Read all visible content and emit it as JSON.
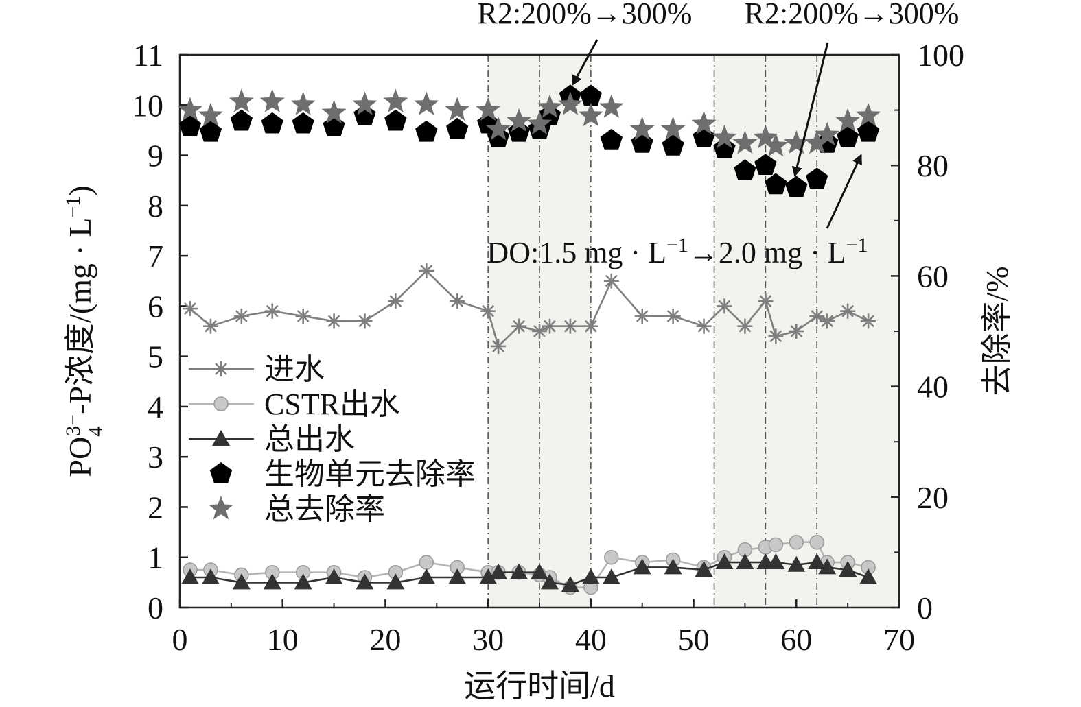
{
  "chart_data": {
    "type": "line",
    "xlabel": "运行时间/d",
    "ylabel_left": "PO4 3−-P浓度/(mg·L−1)",
    "ylabel_left_parts": {
      "pre": "PO",
      "sub": "4",
      "sup": "3−",
      "post": "-P浓度/(mg · L",
      "post_sup": "−1",
      "post_end": ")"
    },
    "ylabel_right": "去除率/%",
    "xlim": [
      0,
      70
    ],
    "ylim_left": [
      0,
      11
    ],
    "ylim_right": [
      0,
      100
    ],
    "xticks": [
      0,
      10,
      20,
      30,
      40,
      50,
      60,
      70
    ],
    "yticks_left": [
      0,
      1,
      2,
      3,
      4,
      5,
      6,
      7,
      8,
      9,
      10,
      11
    ],
    "yticks_right": [
      0,
      20,
      40,
      60,
      80,
      100
    ],
    "shaded_regions": [
      [
        30,
        40
      ],
      [
        52,
        67
      ]
    ],
    "vlines": [
      30,
      35,
      40,
      52,
      57,
      62
    ],
    "series": [
      {
        "name": "进水",
        "axis": "left",
        "marker": "asterisk",
        "color": "#7f7f7f",
        "x": [
          1,
          3,
          6,
          9,
          12,
          15,
          18,
          21,
          24,
          27,
          30,
          31,
          33,
          35,
          36,
          38,
          40,
          42,
          45,
          48,
          51,
          53,
          55,
          57,
          58,
          60,
          62,
          63,
          65,
          67
        ],
        "y": [
          5.95,
          5.6,
          5.8,
          5.9,
          5.8,
          5.7,
          5.7,
          6.1,
          6.7,
          6.1,
          5.9,
          5.2,
          5.6,
          5.5,
          5.6,
          5.6,
          5.6,
          6.5,
          5.8,
          5.8,
          5.6,
          6.0,
          5.6,
          6.1,
          5.4,
          5.5,
          5.8,
          5.7,
          5.9,
          5.7
        ]
      },
      {
        "name": "CSTR出水",
        "axis": "left",
        "marker": "circle",
        "color": "#b5b5b5",
        "x": [
          1,
          3,
          6,
          9,
          12,
          15,
          18,
          21,
          24,
          27,
          30,
          31,
          33,
          35,
          36,
          38,
          40,
          42,
          45,
          48,
          51,
          53,
          55,
          57,
          58,
          60,
          62,
          63,
          65,
          67
        ],
        "y": [
          0.75,
          0.75,
          0.65,
          0.7,
          0.7,
          0.7,
          0.6,
          0.7,
          0.9,
          0.8,
          0.7,
          0.7,
          0.7,
          0.65,
          0.6,
          0.4,
          0.4,
          1.0,
          0.9,
          0.95,
          0.8,
          1.0,
          1.15,
          1.2,
          1.25,
          1.3,
          1.3,
          0.9,
          0.9,
          0.8
        ]
      },
      {
        "name": "总出水",
        "axis": "left",
        "marker": "triangle",
        "color": "#333333",
        "x": [
          1,
          3,
          6,
          9,
          12,
          15,
          18,
          21,
          24,
          27,
          30,
          31,
          33,
          35,
          36,
          38,
          40,
          42,
          45,
          48,
          51,
          53,
          55,
          57,
          58,
          60,
          62,
          63,
          65,
          67
        ],
        "y": [
          0.6,
          0.6,
          0.5,
          0.5,
          0.5,
          0.6,
          0.5,
          0.5,
          0.6,
          0.6,
          0.6,
          0.7,
          0.7,
          0.7,
          0.5,
          0.45,
          0.6,
          0.6,
          0.8,
          0.8,
          0.75,
          0.9,
          0.9,
          0.9,
          0.9,
          0.85,
          0.9,
          0.8,
          0.75,
          0.6
        ]
      },
      {
        "name": "生物单元去除率",
        "axis": "right",
        "marker": "pentagon",
        "color": "#000000",
        "x": [
          1,
          3,
          6,
          9,
          12,
          15,
          18,
          21,
          24,
          27,
          30,
          31,
          33,
          35,
          36,
          38,
          40,
          42,
          45,
          48,
          51,
          53,
          55,
          57,
          58,
          60,
          62,
          63,
          65,
          67
        ],
        "y": [
          87,
          86,
          88,
          87.5,
          87.5,
          87,
          89,
          88,
          86,
          86.5,
          87.5,
          85,
          86,
          86.5,
          89,
          92.5,
          92.5,
          84.5,
          84,
          83.5,
          85,
          83,
          79,
          80,
          76.5,
          76,
          77.5,
          84,
          85,
          86
        ]
      },
      {
        "name": "总去除率",
        "axis": "right",
        "marker": "star",
        "color": "#6e6e6e",
        "x": [
          1,
          3,
          6,
          9,
          12,
          15,
          18,
          21,
          24,
          27,
          30,
          31,
          33,
          35,
          36,
          38,
          40,
          42,
          45,
          48,
          51,
          53,
          55,
          57,
          58,
          60,
          62,
          63,
          65,
          67
        ],
        "y": [
          90,
          89,
          91.5,
          91.5,
          91,
          89.5,
          91,
          91.5,
          91,
          90,
          90,
          86.5,
          88,
          87.5,
          90.5,
          91,
          89,
          90.5,
          86.5,
          86.5,
          87.5,
          85,
          84,
          85,
          83.5,
          84,
          84,
          85.5,
          88,
          89
        ]
      }
    ],
    "annotations": [
      {
        "text": "R2:200%→300%",
        "arrow_to": {
          "x": 38,
          "y_right": 92.5
        }
      },
      {
        "text": "R2:200%→300%",
        "arrow_to": {
          "x": 60,
          "y_right": 79
        }
      },
      {
        "text": "DO:1.5 mg · L−1→2.0 mg · L−1",
        "parts": {
          "a": "DO:1.5 mg · L",
          "a_sup": "−1",
          "b": "→2.0 mg · L",
          "b_sup": "−1"
        },
        "arrow_to": {
          "x": 66,
          "y_right": 83
        }
      }
    ]
  }
}
